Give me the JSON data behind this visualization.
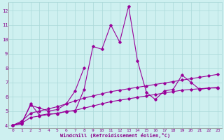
{
  "xlabel": "Windchill (Refroidissement éolien,°C)",
  "x": [
    0,
    1,
    2,
    3,
    4,
    5,
    6,
    7,
    8,
    9,
    10,
    11,
    12,
    13,
    14,
    15,
    16,
    17,
    18,
    19,
    20,
    21,
    22,
    23
  ],
  "line1": [
    4.0,
    4.1,
    5.5,
    4.7,
    4.8,
    4.8,
    5.0,
    5.0,
    6.5,
    9.5,
    9.3,
    11.0,
    9.8,
    12.3,
    8.5,
    6.3,
    5.8,
    6.4,
    6.5,
    7.5,
    7.0,
    6.5,
    6.6,
    6.6
  ],
  "line2": [
    4.0,
    4.2,
    5.4,
    5.2,
    5.0,
    5.1,
    5.5,
    6.4,
    8.0,
    null,
    null,
    null,
    null,
    null,
    null,
    null,
    null,
    null,
    null,
    null,
    null,
    null,
    null,
    null
  ],
  "line3": [
    4.0,
    4.3,
    4.85,
    5.0,
    5.15,
    5.3,
    5.5,
    5.7,
    5.9,
    6.05,
    6.2,
    6.35,
    6.45,
    6.55,
    6.65,
    6.75,
    6.85,
    6.95,
    7.05,
    7.15,
    7.25,
    7.35,
    7.45,
    7.55
  ],
  "line4": [
    4.0,
    4.15,
    4.55,
    4.65,
    4.75,
    4.85,
    4.95,
    5.05,
    5.2,
    5.35,
    5.5,
    5.65,
    5.75,
    5.85,
    5.95,
    6.05,
    6.15,
    6.25,
    6.35,
    6.45,
    6.5,
    6.55,
    6.6,
    6.65
  ],
  "line_color": "#990099",
  "bg_color": "#cef0f0",
  "grid_color": "#aad8d8",
  "tick_color": "#880088",
  "label_color": "#880088",
  "ylim": [
    3.8,
    12.6
  ],
  "yticks": [
    4,
    5,
    6,
    7,
    8,
    9,
    10,
    11,
    12
  ],
  "xlim": [
    -0.5,
    23.5
  ]
}
